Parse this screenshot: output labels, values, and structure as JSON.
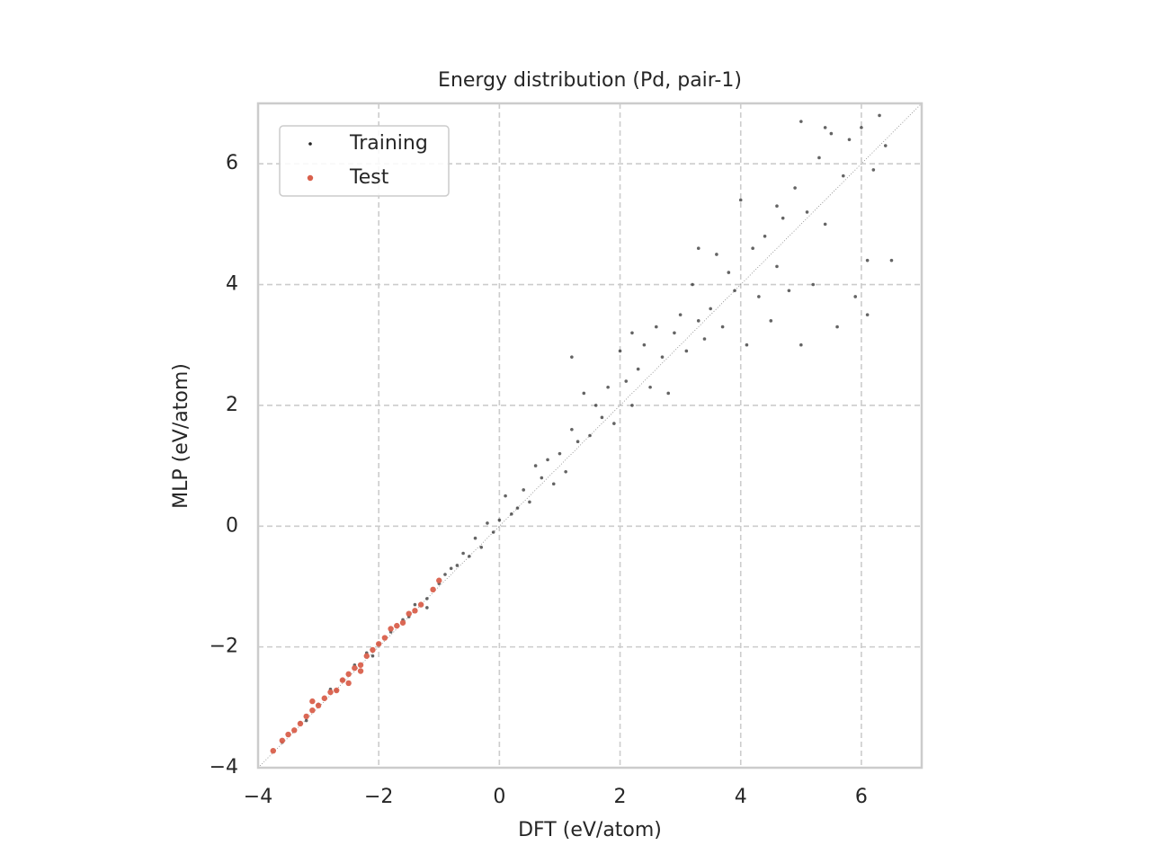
{
  "chart_data": {
    "type": "scatter",
    "title": "Energy distribution (Pd, pair-1)",
    "x_label": "DFT (eV/atom)",
    "y_label": "MLP (eV/atom)",
    "xlim": [
      -4,
      7
    ],
    "ylim": [
      -4,
      7
    ],
    "xticks": [
      {
        "value": -4,
        "label": "−4"
      },
      {
        "value": -2,
        "label": "−2"
      },
      0,
      2,
      4,
      6
    ],
    "yticks": [
      {
        "value": -4,
        "label": "−4"
      },
      {
        "value": -2,
        "label": "−2"
      },
      0,
      2,
      4,
      6
    ],
    "grid": true,
    "legend": "upper left",
    "series": [
      {
        "name": "Training",
        "color": "#222222",
        "x": [
          -3.6,
          -3.3,
          -3.0,
          -2.8,
          -2.6,
          -2.4,
          -2.2,
          -2.0,
          -1.8,
          -1.6,
          -1.5,
          -1.4,
          -1.2,
          -1.0,
          -0.9,
          -0.8,
          -0.7,
          -0.6,
          -0.5,
          -0.4,
          -0.3,
          -0.2,
          -0.1,
          0,
          0.1,
          0.2,
          0.3,
          0.4,
          0.5,
          0.6,
          0.7,
          0.8,
          0.9,
          1.0,
          1.1,
          1.2,
          1.3,
          1.4,
          1.5,
          1.6,
          1.7,
          1.8,
          1.9,
          2.0,
          2.1,
          2.2,
          2.3,
          2.4,
          2.5,
          2.6,
          2.7,
          2.8,
          2.9,
          3.0,
          3.1,
          3.2,
          3.3,
          3.4,
          3.5,
          3.6,
          3.7,
          3.8,
          3.9,
          4.0,
          4.1,
          4.2,
          4.3,
          4.4,
          4.5,
          4.6,
          4.7,
          4.8,
          4.9,
          5.0,
          5.1,
          5.2,
          5.3,
          5.4,
          5.5,
          5.6,
          5.7,
          5.8,
          5.9,
          6.0,
          6.1,
          6.2,
          6.3,
          6.4,
          6.5,
          6.1,
          5.0,
          5.4,
          4.6,
          3.3,
          2.2,
          1.2,
          -1.2,
          -2.1,
          -2.7,
          -3.2
        ],
        "values": [
          -3.58,
          -3.25,
          -2.95,
          -2.7,
          -2.55,
          -2.3,
          -2.1,
          -1.95,
          -1.75,
          -1.55,
          -1.5,
          -1.3,
          -1.2,
          -0.95,
          -0.8,
          -0.7,
          -0.65,
          -0.45,
          -0.5,
          -0.2,
          -0.35,
          0.05,
          -0.1,
          0.1,
          0.5,
          0.2,
          0.3,
          0.6,
          0.4,
          1.0,
          0.8,
          1.1,
          0.7,
          1.2,
          0.9,
          1.6,
          1.4,
          2.2,
          1.5,
          2.0,
          1.8,
          2.3,
          1.7,
          2.9,
          2.4,
          2.0,
          2.6,
          3.0,
          2.3,
          3.3,
          2.8,
          2.2,
          3.2,
          3.5,
          2.9,
          4.0,
          3.4,
          3.1,
          3.6,
          4.5,
          3.3,
          4.2,
          3.9,
          5.4,
          3.0,
          4.6,
          3.8,
          4.8,
          3.4,
          4.3,
          5.1,
          3.9,
          5.6,
          3.0,
          5.2,
          4.0,
          6.1,
          5.0,
          6.5,
          3.3,
          5.8,
          6.4,
          3.8,
          6.6,
          4.4,
          5.9,
          6.8,
          6.3,
          4.4,
          3.5,
          6.7,
          6.6,
          5.3,
          4.6,
          3.2,
          2.8,
          -1.35,
          -2.15,
          -2.72,
          -3.22
        ]
      },
      {
        "name": "Test",
        "color": "#d9604c",
        "x": [
          -3.75,
          -3.6,
          -3.5,
          -3.4,
          -3.3,
          -3.2,
          -3.1,
          -3.0,
          -3.1,
          -2.9,
          -2.8,
          -2.7,
          -2.6,
          -2.5,
          -2.4,
          -2.3,
          -2.2,
          -2.1,
          -2.0,
          -1.9,
          -1.8,
          -1.7,
          -1.6,
          -1.5,
          -1.4,
          -1.3,
          -1.1,
          -1.0,
          -2.5,
          -2.3
        ],
        "values": [
          -3.72,
          -3.55,
          -3.45,
          -3.38,
          -3.27,
          -3.15,
          -3.05,
          -2.97,
          -2.9,
          -2.85,
          -2.75,
          -2.72,
          -2.55,
          -2.45,
          -2.35,
          -2.3,
          -2.15,
          -2.05,
          -1.95,
          -1.85,
          -1.7,
          -1.65,
          -1.6,
          -1.45,
          -1.4,
          -1.3,
          -1.05,
          -0.9,
          -2.6,
          -2.4
        ]
      }
    ]
  }
}
